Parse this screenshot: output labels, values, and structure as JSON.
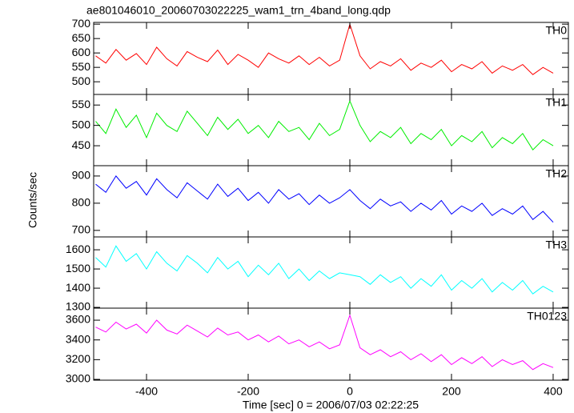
{
  "chart_data": {
    "type": "line",
    "title": "ae801046010_20060703022225_wam1_trn_4band_long.qdp",
    "x_label": "Time [sec] 0 = 2006/07/03 02:22:25",
    "y_label": "Counts/sec",
    "xlim": [
      -504,
      430
    ],
    "xticks": [
      -400,
      -200,
      0,
      200,
      400
    ],
    "x": [
      -500,
      -480,
      -460,
      -440,
      -420,
      -400,
      -380,
      -360,
      -340,
      -320,
      -300,
      -280,
      -260,
      -240,
      -220,
      -200,
      -180,
      -160,
      -140,
      -120,
      -100,
      -80,
      -60,
      -40,
      -20,
      0,
      20,
      40,
      60,
      80,
      100,
      120,
      140,
      160,
      180,
      200,
      220,
      240,
      260,
      280,
      300,
      320,
      340,
      360,
      380,
      400
    ],
    "panels": [
      {
        "name": "TH0",
        "color": "#ff0000",
        "ylim": [
          456,
          706
        ],
        "yticks": [
          500,
          550,
          600,
          650,
          700
        ],
        "values": [
          590,
          565,
          612,
          575,
          598,
          560,
          620,
          580,
          555,
          605,
          585,
          570,
          610,
          560,
          595,
          575,
          550,
          600,
          580,
          565,
          590,
          560,
          585,
          555,
          575,
          700,
          590,
          545,
          570,
          555,
          580,
          540,
          565,
          550,
          575,
          535,
          560,
          545,
          570,
          530,
          555,
          540,
          560,
          525,
          550,
          530
        ]
      },
      {
        "name": "TH1",
        "color": "#00ee00",
        "ylim": [
          401,
          576
        ],
        "yticks": [
          450,
          500,
          550
        ],
        "values": [
          510,
          480,
          540,
          495,
          525,
          470,
          530,
          500,
          485,
          535,
          505,
          475,
          520,
          490,
          515,
          480,
          500,
          470,
          510,
          485,
          495,
          465,
          505,
          475,
          490,
          560,
          500,
          460,
          485,
          470,
          495,
          455,
          480,
          465,
          490,
          450,
          475,
          460,
          485,
          445,
          470,
          455,
          480,
          440,
          465,
          450
        ]
      },
      {
        "name": "TH2",
        "color": "#0000ff",
        "ylim": [
          676,
          938
        ],
        "yticks": [
          700,
          800,
          900
        ],
        "values": [
          870,
          840,
          900,
          855,
          880,
          830,
          890,
          850,
          820,
          875,
          845,
          815,
          870,
          825,
          855,
          810,
          840,
          800,
          850,
          815,
          835,
          795,
          830,
          800,
          820,
          850,
          810,
          780,
          815,
          790,
          805,
          770,
          800,
          775,
          810,
          760,
          790,
          770,
          800,
          755,
          780,
          760,
          790,
          740,
          770,
          730
        ]
      },
      {
        "name": "TH3",
        "color": "#00ffff",
        "ylim": [
          1296,
          1667
        ],
        "yticks": [
          1300,
          1400,
          1500,
          1600
        ],
        "values": [
          1560,
          1510,
          1620,
          1540,
          1580,
          1500,
          1590,
          1530,
          1490,
          1570,
          1530,
          1480,
          1560,
          1500,
          1540,
          1460,
          1520,
          1470,
          1530,
          1450,
          1500,
          1440,
          1490,
          1450,
          1480,
          1470,
          1460,
          1420,
          1470,
          1430,
          1460,
          1400,
          1450,
          1410,
          1470,
          1390,
          1440,
          1400,
          1450,
          1380,
          1430,
          1390,
          1440,
          1370,
          1410,
          1380
        ]
      },
      {
        "name": "TH0123",
        "color": "#ff00ff",
        "ylim": [
          2992,
          3722
        ],
        "yticks": [
          3000,
          3200,
          3400,
          3600
        ],
        "values": [
          3530,
          3480,
          3580,
          3510,
          3560,
          3470,
          3600,
          3500,
          3460,
          3550,
          3490,
          3430,
          3520,
          3450,
          3480,
          3400,
          3450,
          3380,
          3440,
          3360,
          3400,
          3330,
          3380,
          3310,
          3350,
          3650,
          3320,
          3250,
          3300,
          3230,
          3280,
          3200,
          3260,
          3180,
          3250,
          3150,
          3220,
          3160,
          3230,
          3130,
          3200,
          3150,
          3190,
          3100,
          3160,
          3120
        ]
      }
    ]
  }
}
